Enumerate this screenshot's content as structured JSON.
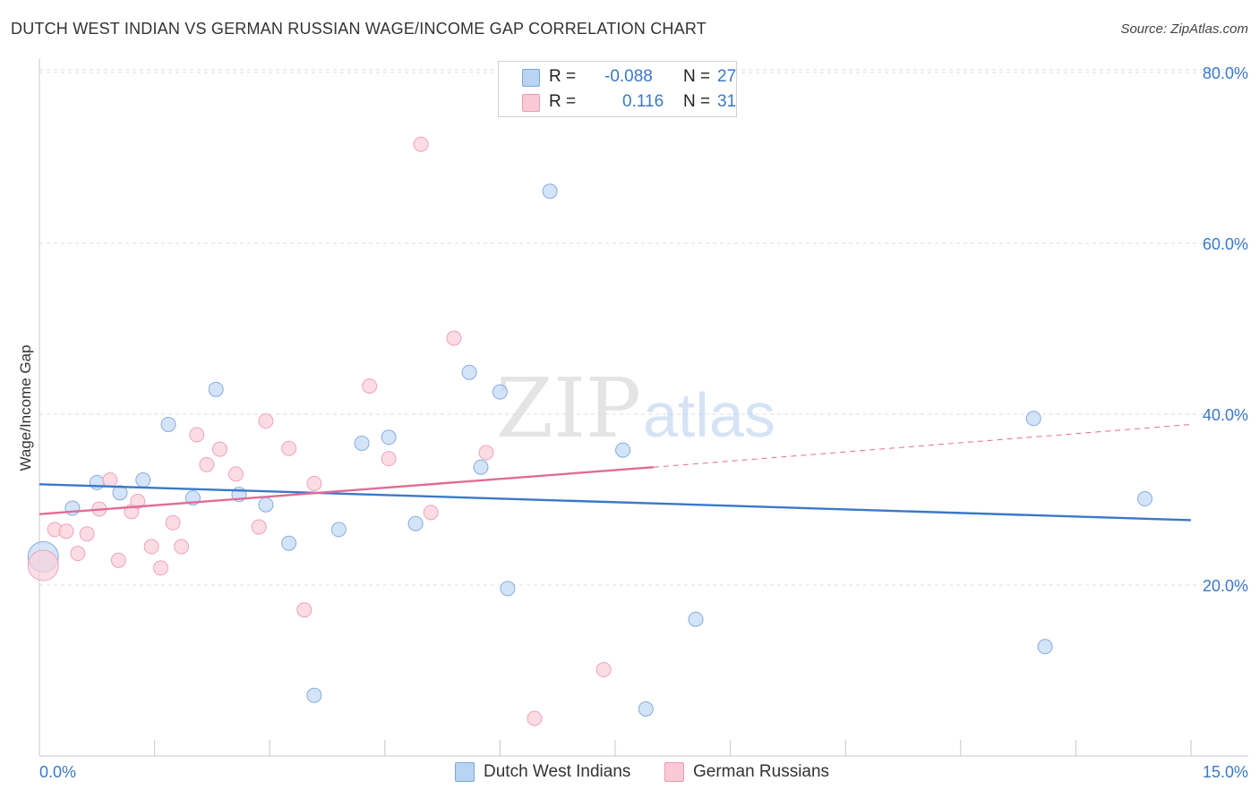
{
  "header": {
    "title": "DUTCH WEST INDIAN VS GERMAN RUSSIAN WAGE/INCOME GAP CORRELATION CHART",
    "source": "Source: ZipAtlas.com"
  },
  "watermark": {
    "zip": "ZIP",
    "atlas": "atlas"
  },
  "legend": {
    "r_label": "R =",
    "n_label": "N =",
    "rows": [
      {
        "r": "-0.088",
        "n": "27",
        "fill": "#b9d3f3",
        "stroke": "#7aa7e0"
      },
      {
        "r": "0.116",
        "n": "31",
        "fill": "#f9c9d7",
        "stroke": "#ee9ab3"
      }
    ]
  },
  "bottom_legend": [
    {
      "label": "Dutch West Indians",
      "fill": "#b9d3f3",
      "stroke": "#7aa7e0"
    },
    {
      "label": "German Russians",
      "fill": "#f9c9d7",
      "stroke": "#ee9ab3"
    }
  ],
  "chart_data": {
    "type": "scatter",
    "title": "DUTCH WEST INDIAN VS GERMAN RUSSIAN WAGE/INCOME GAP CORRELATION CHART",
    "xlabel": "",
    "ylabel": "Wage/Income Gap",
    "xlim": [
      0,
      15
    ],
    "ylim": [
      0,
      82
    ],
    "x_tick_labels": [
      "0.0%",
      "15.0%"
    ],
    "y_ticks": [
      20,
      40,
      60,
      80
    ],
    "y_tick_labels": [
      "20.0%",
      "40.0%",
      "60.0%",
      "80.0%"
    ],
    "grid": true,
    "series": [
      {
        "name": "Dutch West Indians",
        "color": "#3a78c9",
        "fill": "#c5dbf5",
        "stroke": "#86acdc",
        "points": [
          {
            "x": 0.05,
            "y": 23.3
          },
          {
            "x": 0.43,
            "y": 29.0
          },
          {
            "x": 0.75,
            "y": 32.0
          },
          {
            "x": 1.05,
            "y": 30.8
          },
          {
            "x": 1.35,
            "y": 32.3
          },
          {
            "x": 1.68,
            "y": 38.8
          },
          {
            "x": 2.0,
            "y": 30.2
          },
          {
            "x": 2.3,
            "y": 42.9
          },
          {
            "x": 2.6,
            "y": 30.6
          },
          {
            "x": 2.95,
            "y": 29.4
          },
          {
            "x": 3.25,
            "y": 24.9
          },
          {
            "x": 3.58,
            "y": 7.1
          },
          {
            "x": 3.9,
            "y": 26.5
          },
          {
            "x": 4.2,
            "y": 36.6
          },
          {
            "x": 4.55,
            "y": 37.3
          },
          {
            "x": 4.9,
            "y": 27.2
          },
          {
            "x": 5.6,
            "y": 44.9
          },
          {
            "x": 5.75,
            "y": 33.8
          },
          {
            "x": 6.0,
            "y": 42.6
          },
          {
            "x": 6.1,
            "y": 19.6
          },
          {
            "x": 6.65,
            "y": 66.1
          },
          {
            "x": 7.6,
            "y": 35.8
          },
          {
            "x": 7.9,
            "y": 5.5
          },
          {
            "x": 8.55,
            "y": 16.0
          },
          {
            "x": 12.95,
            "y": 39.5
          },
          {
            "x": 13.1,
            "y": 12.8
          },
          {
            "x": 14.4,
            "y": 30.1
          }
        ],
        "trend": {
          "x0": 0,
          "y0": 31.8,
          "x1": 15,
          "y1": 27.6
        }
      },
      {
        "name": "German Russians",
        "color": "#e06c97",
        "fill": "#fad0dc",
        "stroke": "#eea3b9",
        "points": [
          {
            "x": 0.05,
            "y": 22.3
          },
          {
            "x": 0.2,
            "y": 26.5
          },
          {
            "x": 0.35,
            "y": 26.3
          },
          {
            "x": 0.5,
            "y": 23.7
          },
          {
            "x": 0.62,
            "y": 26.0
          },
          {
            "x": 0.78,
            "y": 28.9
          },
          {
            "x": 0.92,
            "y": 32.3
          },
          {
            "x": 1.03,
            "y": 22.9
          },
          {
            "x": 1.2,
            "y": 28.6
          },
          {
            "x": 1.28,
            "y": 29.8
          },
          {
            "x": 1.46,
            "y": 24.5
          },
          {
            "x": 1.58,
            "y": 22.0
          },
          {
            "x": 1.74,
            "y": 27.3
          },
          {
            "x": 1.85,
            "y": 24.5
          },
          {
            "x": 2.05,
            "y": 37.6
          },
          {
            "x": 2.18,
            "y": 34.1
          },
          {
            "x": 2.35,
            "y": 35.9
          },
          {
            "x": 2.56,
            "y": 33.0
          },
          {
            "x": 2.86,
            "y": 26.8
          },
          {
            "x": 2.95,
            "y": 39.2
          },
          {
            "x": 3.25,
            "y": 36.0
          },
          {
            "x": 3.45,
            "y": 17.1
          },
          {
            "x": 3.58,
            "y": 31.9
          },
          {
            "x": 4.3,
            "y": 43.3
          },
          {
            "x": 4.55,
            "y": 34.8
          },
          {
            "x": 4.97,
            "y": 71.6
          },
          {
            "x": 5.1,
            "y": 28.5
          },
          {
            "x": 5.4,
            "y": 48.9
          },
          {
            "x": 5.82,
            "y": 35.5
          },
          {
            "x": 6.45,
            "y": 4.4
          },
          {
            "x": 7.35,
            "y": 10.1
          }
        ],
        "trend": {
          "x0": 0,
          "y0": 28.3,
          "x1": 8.0,
          "y1": 33.8,
          "dash_to_x": 15,
          "dash_to_y": 38.8
        }
      }
    ]
  }
}
